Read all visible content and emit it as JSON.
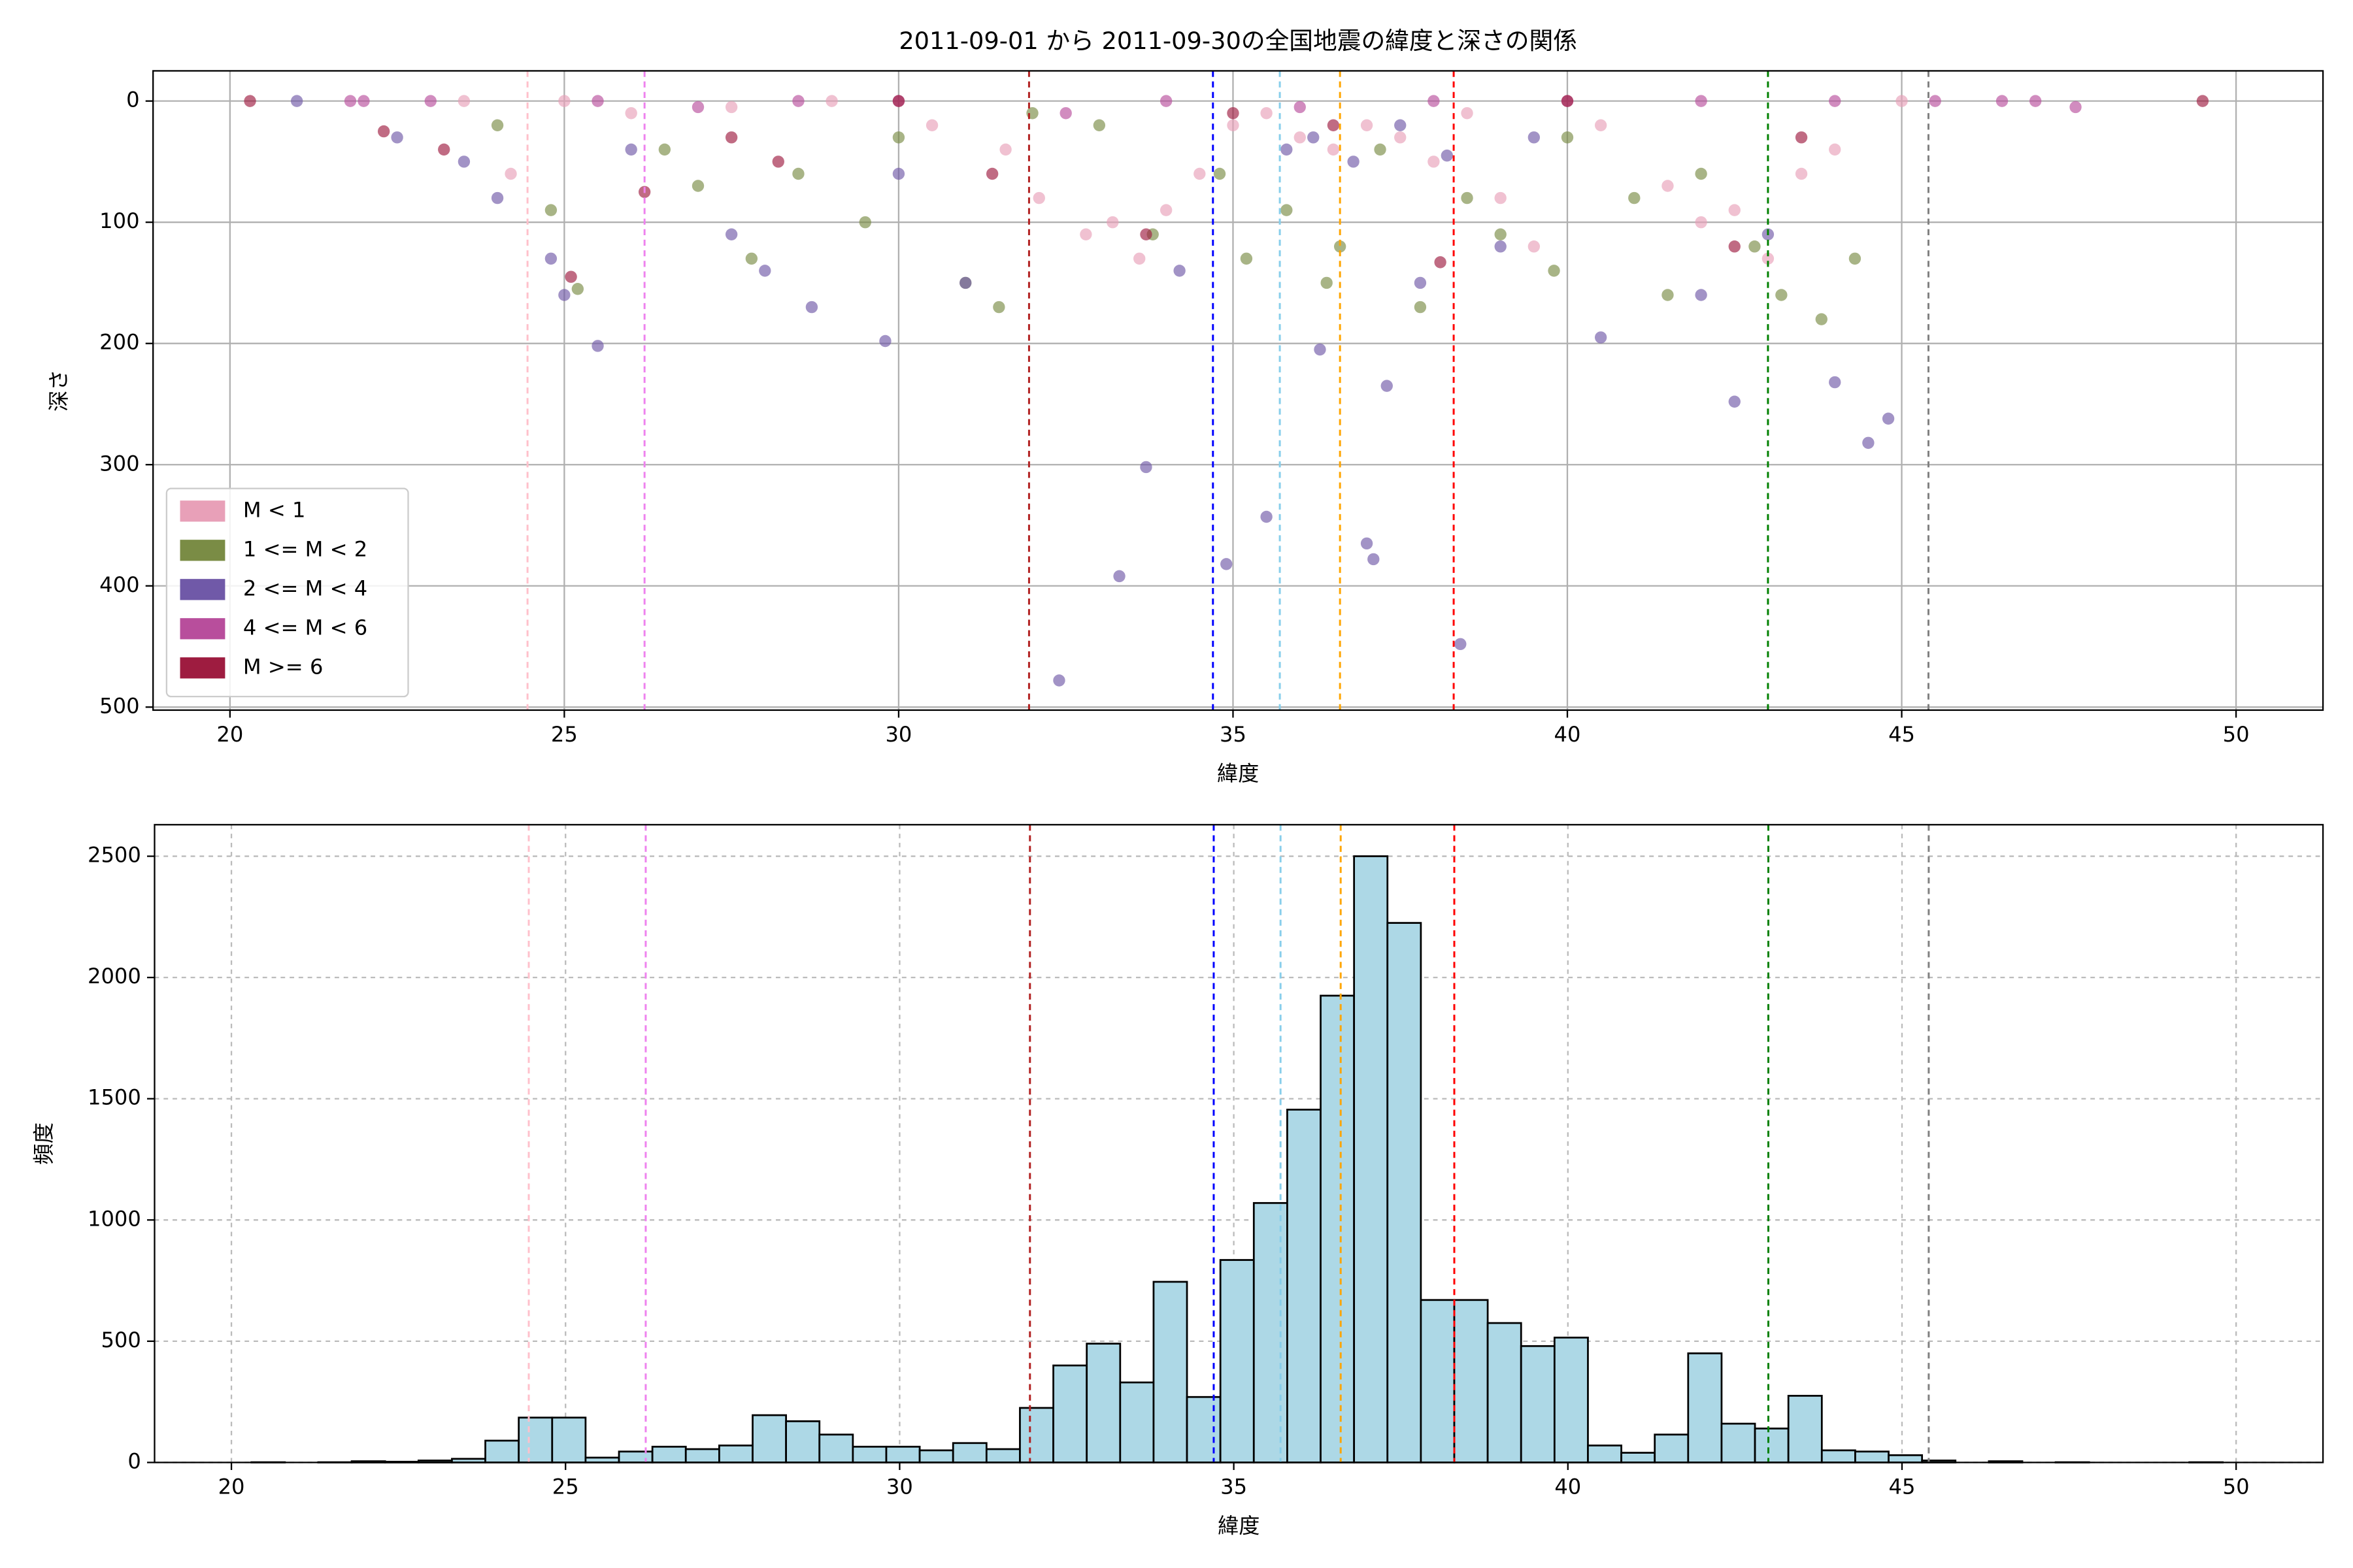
{
  "chart_data": [
    {
      "type": "scatter",
      "title": "2011-09-01 から 2011-09-30の全国地震の緯度と深さの関係",
      "x_label": "緯度",
      "y_label": "深さ",
      "xlim": [
        18.85,
        51.3
      ],
      "xticks": [
        20,
        25,
        30,
        35,
        40,
        45,
        50
      ],
      "ylim": [
        502.5,
        -24.9
      ],
      "yticks": [
        0,
        100,
        200,
        300,
        400,
        500
      ],
      "grid": true,
      "legend": "lower left",
      "vlines": [
        {
          "x": 24.45,
          "color": "pink"
        },
        {
          "x": 26.2,
          "color": "violet"
        },
        {
          "x": 31.95,
          "color": "#b22222"
        },
        {
          "x": 34.7,
          "color": "blue"
        },
        {
          "x": 35.7,
          "color": "skyblue"
        },
        {
          "x": 36.6,
          "color": "orange"
        },
        {
          "x": 38.3,
          "color": "red"
        },
        {
          "x": 43.0,
          "color": "green"
        },
        {
          "x": 45.4,
          "color": "gray"
        }
      ],
      "series": [
        {
          "name": "M < 1",
          "color": "#e8a0b8",
          "x": [
            23.5,
            24.2,
            25.0,
            26.0,
            27.5,
            29.0,
            30.5,
            31.6,
            32.1,
            32.8,
            33.2,
            33.6,
            34.0,
            34.5,
            35.0,
            35.5,
            36.0,
            36.5,
            37.0,
            37.5,
            38.0,
            38.5,
            39.0,
            39.5,
            40.5,
            41.5,
            42.0,
            42.5,
            43.0,
            43.5,
            44.0,
            45.0
          ],
          "values": [
            0,
            60,
            0,
            10,
            5,
            0,
            20,
            40,
            80,
            110,
            100,
            130,
            90,
            60,
            20,
            10,
            30,
            40,
            20,
            30,
            50,
            10,
            80,
            120,
            20,
            70,
            100,
            90,
            130,
            60,
            40,
            0
          ]
        },
        {
          "name": "1 <= M < 2",
          "color": "#7a8c45",
          "x": [
            24.0,
            24.8,
            25.2,
            26.5,
            27.0,
            27.8,
            28.5,
            29.5,
            30.0,
            31.0,
            31.5,
            32.0,
            33.0,
            33.8,
            34.8,
            35.2,
            35.8,
            36.4,
            36.6,
            37.2,
            37.8,
            38.5,
            39.0,
            39.8,
            40.0,
            41.0,
            41.5,
            42.0,
            42.8,
            43.2,
            43.8,
            44.3
          ],
          "values": [
            20,
            90,
            155,
            40,
            70,
            130,
            60,
            100,
            30,
            150,
            170,
            10,
            20,
            110,
            60,
            130,
            90,
            150,
            120,
            40,
            170,
            80,
            110,
            140,
            30,
            80,
            160,
            60,
            120,
            160,
            180,
            130
          ]
        },
        {
          "name": "2 <= M < 4",
          "color": "#7059a8",
          "x": [
            21.0,
            22.5,
            23.5,
            24.0,
            24.8,
            25.0,
            25.5,
            26.0,
            27.5,
            28.0,
            28.7,
            29.8,
            30.0,
            31.0,
            32.4,
            33.3,
            33.7,
            34.2,
            34.9,
            35.5,
            36.3,
            37.0,
            37.1,
            37.3,
            37.8,
            38.4,
            39.0,
            40.5,
            42.0,
            42.5,
            43.0,
            44.0,
            44.5,
            44.8,
            35.8,
            36.2,
            36.8,
            37.5,
            38.2,
            39.5
          ],
          "values": [
            0,
            30,
            50,
            80,
            130,
            160,
            202,
            40,
            110,
            140,
            170,
            198,
            60,
            150,
            478,
            392,
            302,
            140,
            382,
            343,
            205,
            365,
            378,
            235,
            150,
            448,
            120,
            195,
            160,
            248,
            110,
            232,
            282,
            262,
            40,
            30,
            50,
            20,
            45,
            30
          ]
        },
        {
          "name": "4 <= M < 6",
          "color": "#b84e9c",
          "x": [
            21.8,
            22.0,
            23.0,
            25.5,
            27.0,
            28.5,
            30.0,
            32.5,
            34.0,
            36.0,
            38.0,
            40.0,
            42.0,
            44.0,
            45.5,
            46.5,
            47.0,
            47.6
          ],
          "values": [
            0,
            0,
            0,
            0,
            5,
            0,
            0,
            10,
            0,
            5,
            0,
            0,
            0,
            0,
            0,
            0,
            0,
            5
          ]
        },
        {
          "name": "M >= 6",
          "color": "#9e1c40",
          "x": [
            20.3,
            22.3,
            23.2,
            25.1,
            26.2,
            27.5,
            28.2,
            30.0,
            31.4,
            33.7,
            35.0,
            36.5,
            38.1,
            40.0,
            42.5,
            43.5,
            49.5
          ],
          "values": [
            0,
            25,
            40,
            145,
            75,
            30,
            50,
            0,
            60,
            110,
            10,
            20,
            133,
            0,
            120,
            30,
            0
          ]
        }
      ]
    },
    {
      "type": "histogram",
      "x_label": "緯度",
      "y_label": "頻度",
      "xlim": [
        18.85,
        51.3
      ],
      "xticks": [
        20,
        25,
        30,
        35,
        40,
        45,
        50
      ],
      "ylim": [
        0,
        2630
      ],
      "yticks": [
        0,
        500,
        1000,
        1500,
        2000,
        2500
      ],
      "grid": true,
      "color": "#add8e6",
      "edgecolor": "#000000",
      "vlines": [
        {
          "x": 24.45,
          "color": "pink"
        },
        {
          "x": 26.2,
          "color": "violet"
        },
        {
          "x": 31.95,
          "color": "#b22222"
        },
        {
          "x": 34.7,
          "color": "blue"
        },
        {
          "x": 35.7,
          "color": "skyblue"
        },
        {
          "x": 36.6,
          "color": "orange"
        },
        {
          "x": 38.3,
          "color": "red"
        },
        {
          "x": 43.0,
          "color": "green"
        },
        {
          "x": 45.4,
          "color": "gray"
        }
      ],
      "bins": [
        20.3,
        20.8,
        21.3,
        21.8,
        22.3,
        22.8,
        23.3,
        23.8,
        24.3,
        24.8,
        25.3,
        25.8,
        26.3,
        26.8,
        27.3,
        27.8,
        28.3,
        28.8,
        29.3,
        29.8,
        30.3,
        30.8,
        31.3,
        31.8,
        32.3,
        32.8,
        33.3,
        33.8,
        34.3,
        34.8,
        35.3,
        35.8,
        36.3,
        36.8,
        37.3,
        37.8,
        38.3,
        38.8,
        39.3,
        39.8,
        40.3,
        40.8,
        41.3,
        41.8,
        42.3,
        42.8,
        43.3,
        43.8,
        44.3,
        44.8,
        45.3,
        45.8,
        46.3,
        46.8,
        47.3,
        47.8,
        48.3,
        48.8,
        49.3,
        49.8
      ],
      "values": [
        1,
        0,
        1,
        5,
        3,
        8,
        15,
        90,
        185,
        185,
        20,
        45,
        65,
        55,
        70,
        195,
        170,
        115,
        65,
        65,
        50,
        80,
        55,
        225,
        400,
        490,
        330,
        745,
        270,
        835,
        1070,
        1455,
        1925,
        2500,
        2225,
        670,
        670,
        575,
        480,
        515,
        70,
        40,
        115,
        450,
        160,
        140,
        275,
        50,
        45,
        30,
        8,
        0,
        5,
        0,
        1,
        0,
        0,
        0,
        1
      ]
    }
  ]
}
